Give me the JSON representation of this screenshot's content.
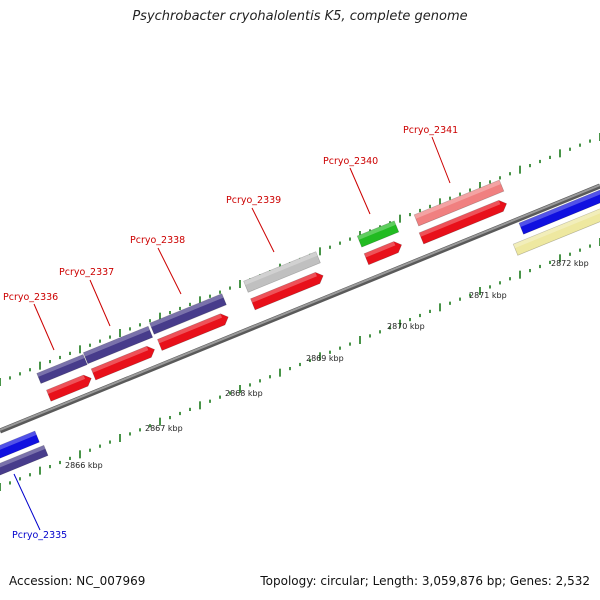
{
  "title": "Psychrobacter cryohalolentis K5, complete genome",
  "footer": {
    "accession": "Accession: NC_007969",
    "info": "Topology: circular; Length: 3,059,876 bp; Genes: 2,532"
  },
  "axis": {
    "unit": "kbp",
    "ticks": [
      "2866 kbp",
      "2867 kbp",
      "2868 kbp",
      "2869 kbp",
      "2870 kbp",
      "2871 kbp",
      "2872 kbp"
    ]
  },
  "colors": {
    "backbone": "#8a8a8a",
    "cds": "#e8101a",
    "label_red": "#cc0000",
    "label_blue": "#0000cc",
    "gene_blue": "#1010e0",
    "gene_navy": "#473c8b",
    "gene_grey": "#c0c0c0",
    "gene_green": "#22bb22",
    "gene_pink": "#f08080",
    "gene_yellow": "#eee8a0",
    "tick_green": "#1a7a1a"
  },
  "genes": [
    {
      "label": "Pcryo_2335",
      "color": "blue"
    },
    {
      "label": "Pcryo_2336",
      "color": "red"
    },
    {
      "label": "Pcryo_2337",
      "color": "red"
    },
    {
      "label": "Pcryo_2338",
      "color": "red"
    },
    {
      "label": "Pcryo_2339",
      "color": "red"
    },
    {
      "label": "Pcryo_2340",
      "color": "red"
    },
    {
      "label": "Pcryo_2341",
      "color": "red"
    }
  ]
}
